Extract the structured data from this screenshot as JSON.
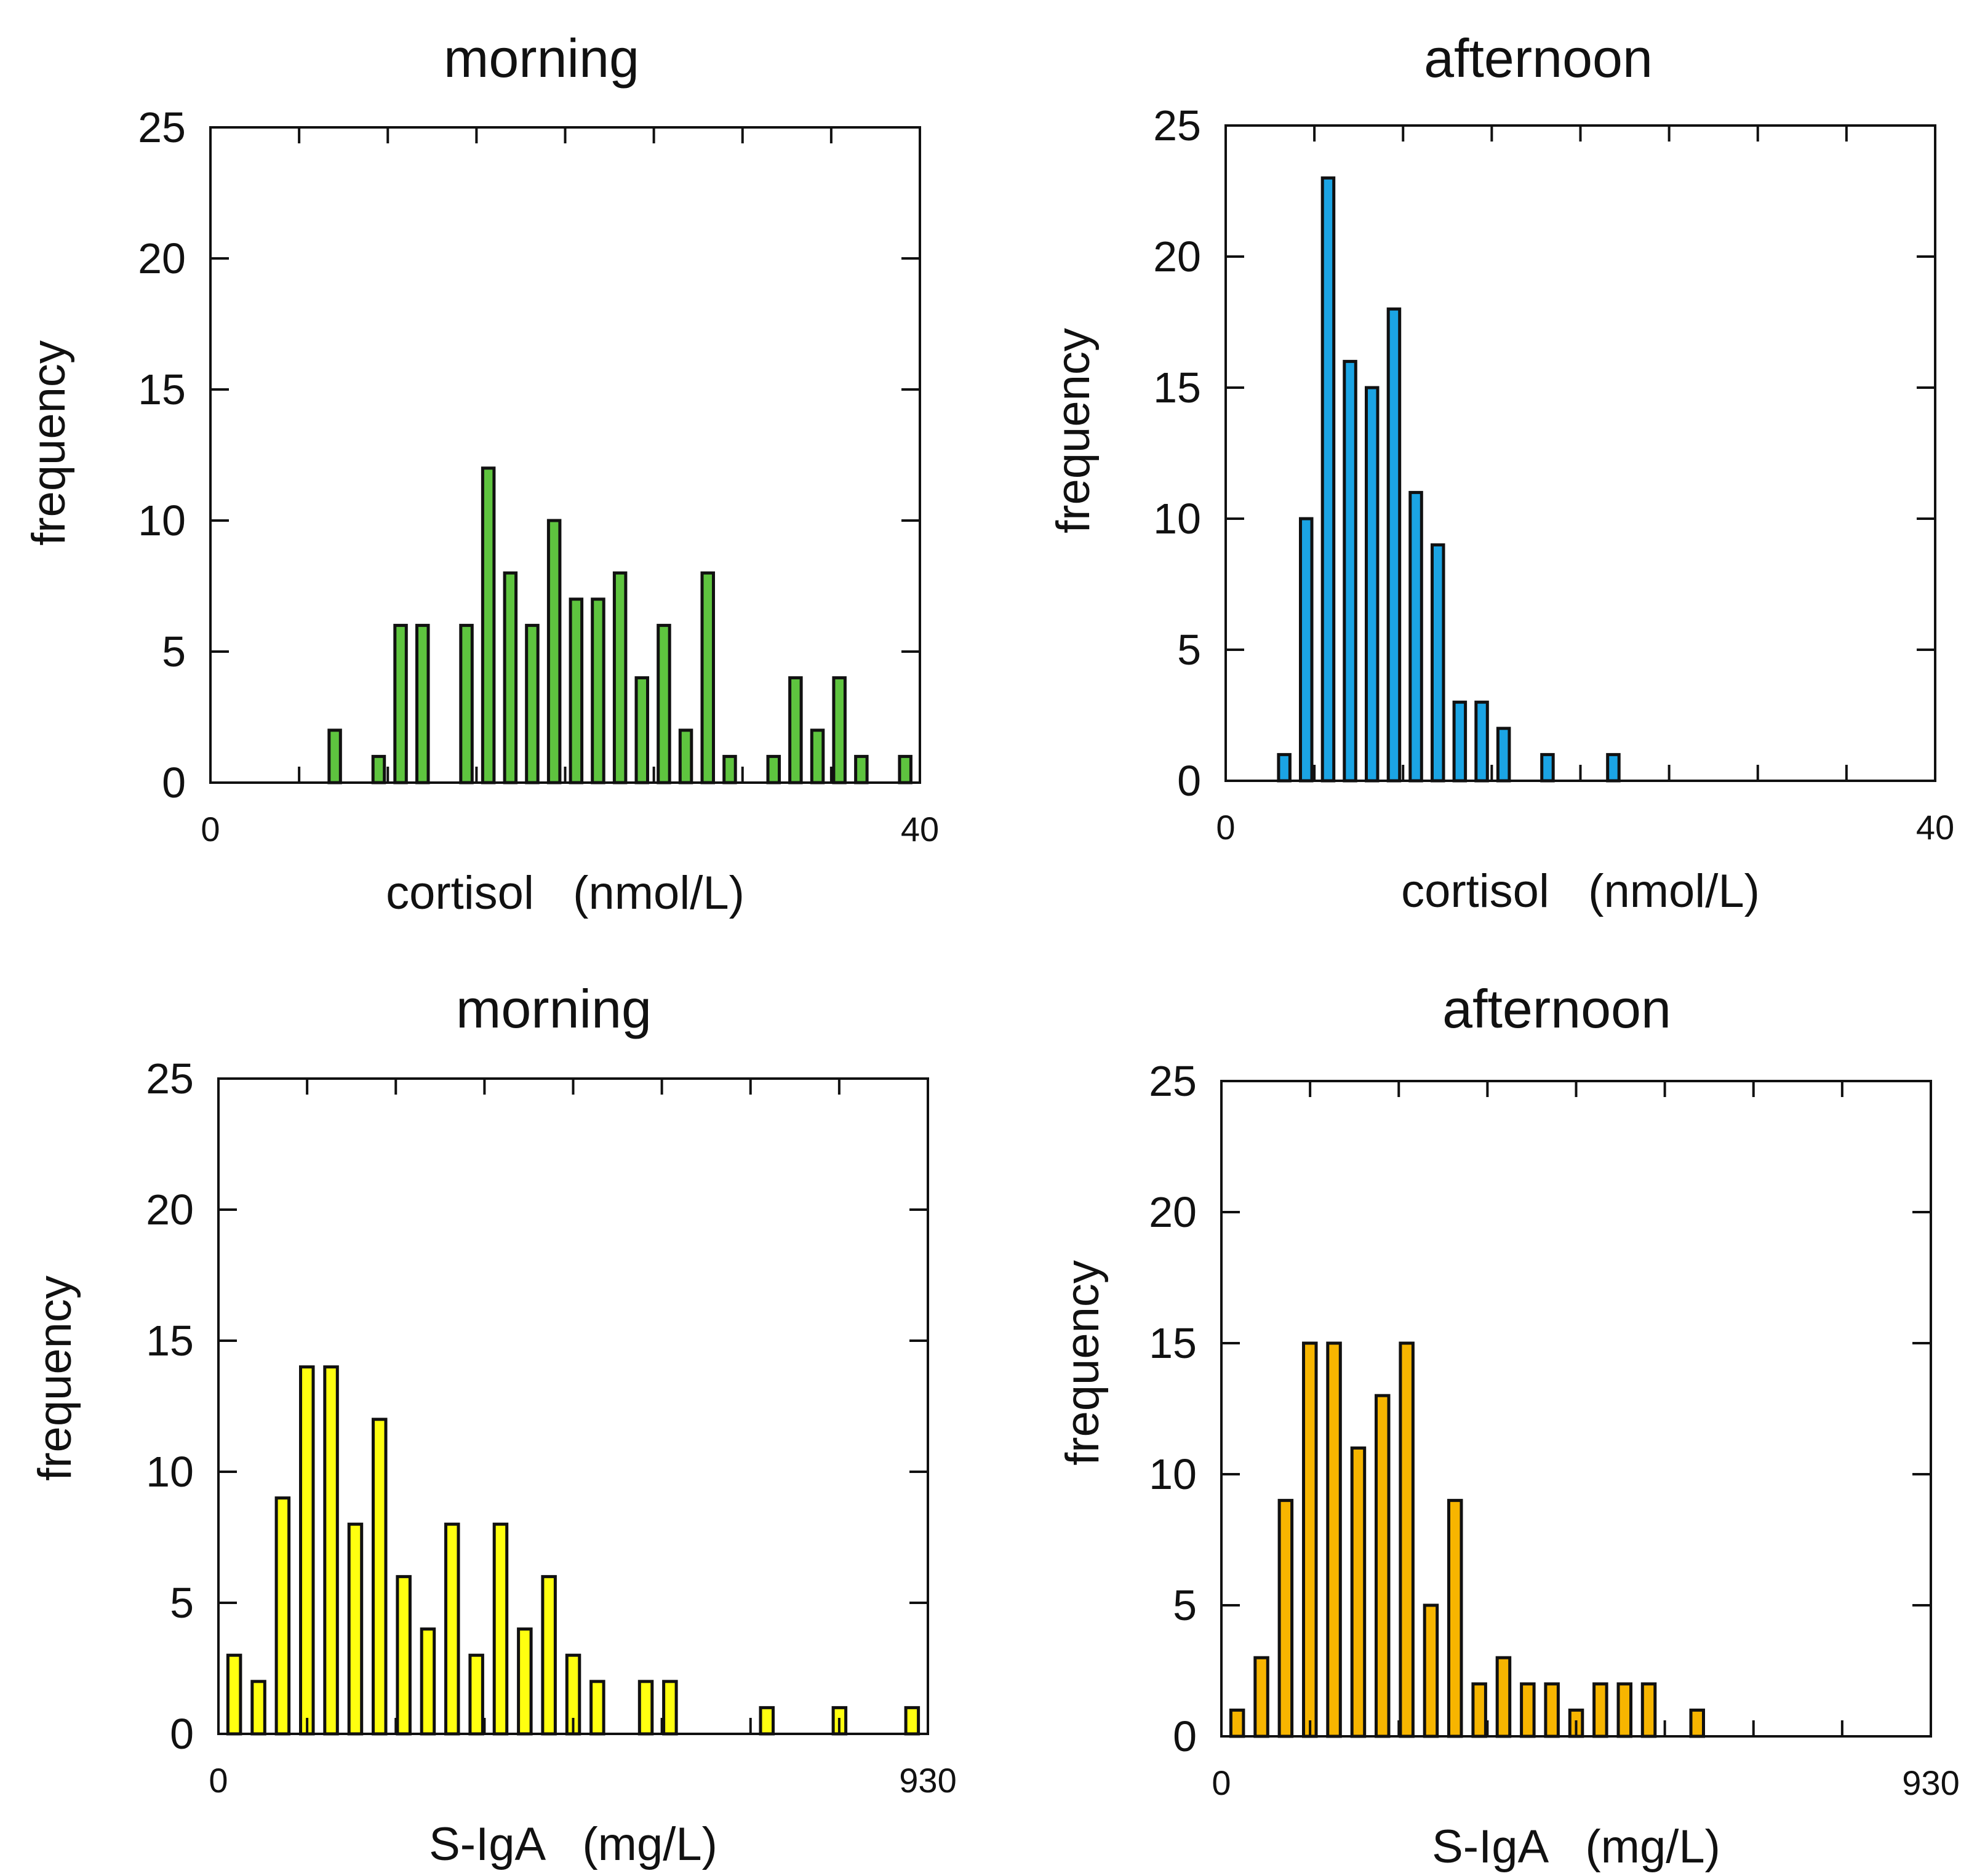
{
  "chart_data": [
    {
      "type": "bar",
      "title": "morning",
      "xlabel": "cortisol   (nmol/L)",
      "ylabel": "frequency",
      "xlim": [
        0,
        40
      ],
      "ylim": [
        0,
        25
      ],
      "xticklabels": [
        "0",
        "40"
      ],
      "yticklabels": [
        "0",
        "5",
        "10",
        "15",
        "20",
        "25"
      ],
      "color": "#5ec43f",
      "bins": 32,
      "values": [
        0,
        0,
        0,
        0,
        0,
        2,
        0,
        1,
        6,
        6,
        0,
        6,
        12,
        8,
        6,
        10,
        7,
        7,
        8,
        4,
        6,
        2,
        8,
        1,
        0,
        1,
        4,
        2,
        4,
        1,
        0,
        1
      ]
    },
    {
      "type": "bar",
      "title": "afternoon",
      "xlabel": "cortisol   (nmol/L)",
      "ylabel": "frequency",
      "xlim": [
        0,
        40
      ],
      "ylim": [
        0,
        25
      ],
      "xticklabels": [
        "0",
        "40"
      ],
      "yticklabels": [
        "0",
        "5",
        "10",
        "15",
        "20",
        "25"
      ],
      "color": "#1ba4e4",
      "bins": 32,
      "values": [
        0,
        0,
        1,
        10,
        23,
        16,
        15,
        18,
        11,
        9,
        3,
        3,
        2,
        0,
        1,
        0,
        0,
        1,
        0,
        0,
        0,
        0,
        0,
        0,
        0,
        0,
        0,
        0,
        0,
        0,
        0,
        0
      ]
    },
    {
      "type": "bar",
      "title": "morning",
      "xlabel": "S-IgA   (mg/L)",
      "ylabel": "frequency",
      "xlim": [
        0,
        930
      ],
      "ylim": [
        0,
        25
      ],
      "xticklabels": [
        "0",
        "930"
      ],
      "yticklabels": [
        "0",
        "5",
        "10",
        "15",
        "20",
        "25"
      ],
      "color": "#ffff10",
      "bins": 29,
      "values": [
        3,
        2,
        9,
        14,
        14,
        8,
        12,
        6,
        4,
        8,
        3,
        8,
        4,
        6,
        3,
        2,
        0,
        2,
        2,
        0,
        0,
        0,
        1,
        0,
        0,
        1,
        0,
        0,
        1
      ]
    },
    {
      "type": "bar",
      "title": "afternoon",
      "xlabel": "S-IgA   (mg/L)",
      "ylabel": "frequency",
      "xlim": [
        0,
        930
      ],
      "ylim": [
        0,
        25
      ],
      "xticklabels": [
        "0",
        "930"
      ],
      "yticklabels": [
        "0",
        "5",
        "10",
        "15",
        "20",
        "25"
      ],
      "color": "#f7b500",
      "bins": 29,
      "values": [
        1,
        3,
        9,
        15,
        15,
        11,
        13,
        15,
        5,
        9,
        2,
        3,
        2,
        2,
        1,
        2,
        2,
        2,
        0,
        1,
        0,
        0,
        0,
        0,
        0,
        0,
        0,
        0,
        0
      ]
    }
  ]
}
